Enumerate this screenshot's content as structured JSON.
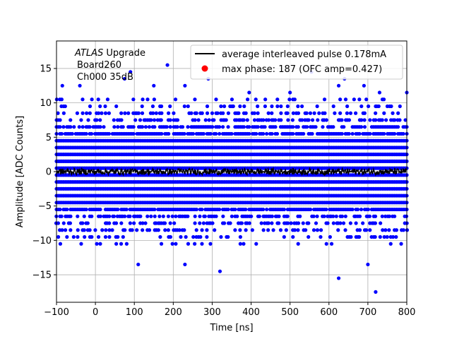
{
  "chart_data": {
    "type": "scatter",
    "xlabel": "Time [ns]",
    "ylabel": "Amplitude [ADC Counts]",
    "xlim": [
      -100,
      800
    ],
    "ylim": [
      -19,
      19
    ],
    "xticks": [
      -100,
      0,
      100,
      200,
      300,
      400,
      500,
      600,
      700,
      800
    ],
    "yticks": [
      -15,
      -10,
      -5,
      0,
      5,
      10,
      15
    ],
    "grid": true,
    "legend_position": "top-right",
    "annotation": {
      "atlas": "ATLAS",
      "upgrade": " Upgrade",
      "board": "Board260",
      "channel": "Ch000 35dB"
    },
    "series": [
      {
        "name": "average interleaved pulse 0.178mA",
        "kind": "line",
        "color": "#000000",
        "x_range": [
          -100,
          800
        ],
        "description_level": 0,
        "values_sample": [
          [
            -100,
            0.1
          ],
          [
            -80,
            -0.2
          ],
          [
            -60,
            0.3
          ],
          [
            -40,
            -0.1
          ],
          [
            -20,
            0.4
          ],
          [
            0,
            0.2
          ],
          [
            20,
            -0.3
          ],
          [
            40,
            0.3
          ],
          [
            60,
            -0.2
          ],
          [
            80,
            0.1
          ],
          [
            100,
            0.3
          ],
          [
            120,
            -0.4
          ],
          [
            140,
            0.2
          ],
          [
            160,
            -0.1
          ],
          [
            180,
            0.4
          ],
          [
            200,
            0.0
          ],
          [
            220,
            -0.3
          ],
          [
            240,
            0.2
          ],
          [
            260,
            -0.2
          ],
          [
            280,
            0.3
          ],
          [
            300,
            -0.1
          ],
          [
            320,
            0.2
          ],
          [
            340,
            -0.4
          ],
          [
            360,
            0.1
          ],
          [
            380,
            0.3
          ],
          [
            400,
            -0.2
          ],
          [
            420,
            0.2
          ],
          [
            440,
            -0.1
          ],
          [
            460,
            0.3
          ],
          [
            480,
            -0.3
          ],
          [
            500,
            0.1
          ],
          [
            520,
            0.4
          ],
          [
            540,
            -0.2
          ],
          [
            560,
            0.2
          ],
          [
            580,
            -0.1
          ],
          [
            600,
            0.3
          ],
          [
            620,
            -0.3
          ],
          [
            640,
            0.1
          ],
          [
            660,
            -0.2
          ],
          [
            680,
            0.2
          ],
          [
            700,
            0.4
          ],
          [
            720,
            -0.4
          ],
          [
            740,
            0.2
          ],
          [
            760,
            -0.1
          ],
          [
            780,
            0.1
          ],
          [
            800,
            0.0
          ]
        ]
      },
      {
        "name": "max phase: 187 (OFC amp=0.427)",
        "kind": "scatter",
        "color": "#0000ff",
        "dense_levels": [
          -5.5,
          -4.5,
          -3.5,
          -2.5,
          -1.5,
          -0.5,
          0.5,
          1.5,
          2.5,
          3.5,
          4.5,
          5.5,
          6.5
        ],
        "sparse_levels": [
          -10.5,
          -9.5,
          -8.5,
          -7.5,
          -6.5,
          7.5,
          8.5,
          9.5,
          10.5
        ],
        "outliers": [
          [
            -85,
            12.5
          ],
          [
            -40,
            12.5
          ],
          [
            75,
            13.5
          ],
          [
            90,
            14.5
          ],
          [
            150,
            12.5
          ],
          [
            185,
            15.5
          ],
          [
            230,
            12.5
          ],
          [
            290,
            13.5
          ],
          [
            395,
            11.5
          ],
          [
            500,
            11.5
          ],
          [
            555,
            14.5
          ],
          [
            625,
            12.5
          ],
          [
            640,
            13.5
          ],
          [
            690,
            12.5
          ],
          [
            730,
            11.5
          ],
          [
            800,
            11.5
          ],
          [
            110,
            -13.5
          ],
          [
            230,
            -13.5
          ],
          [
            320,
            -14.5
          ],
          [
            625,
            -15.5
          ],
          [
            700,
            -13.5
          ],
          [
            720,
            -17.5
          ]
        ]
      }
    ]
  }
}
